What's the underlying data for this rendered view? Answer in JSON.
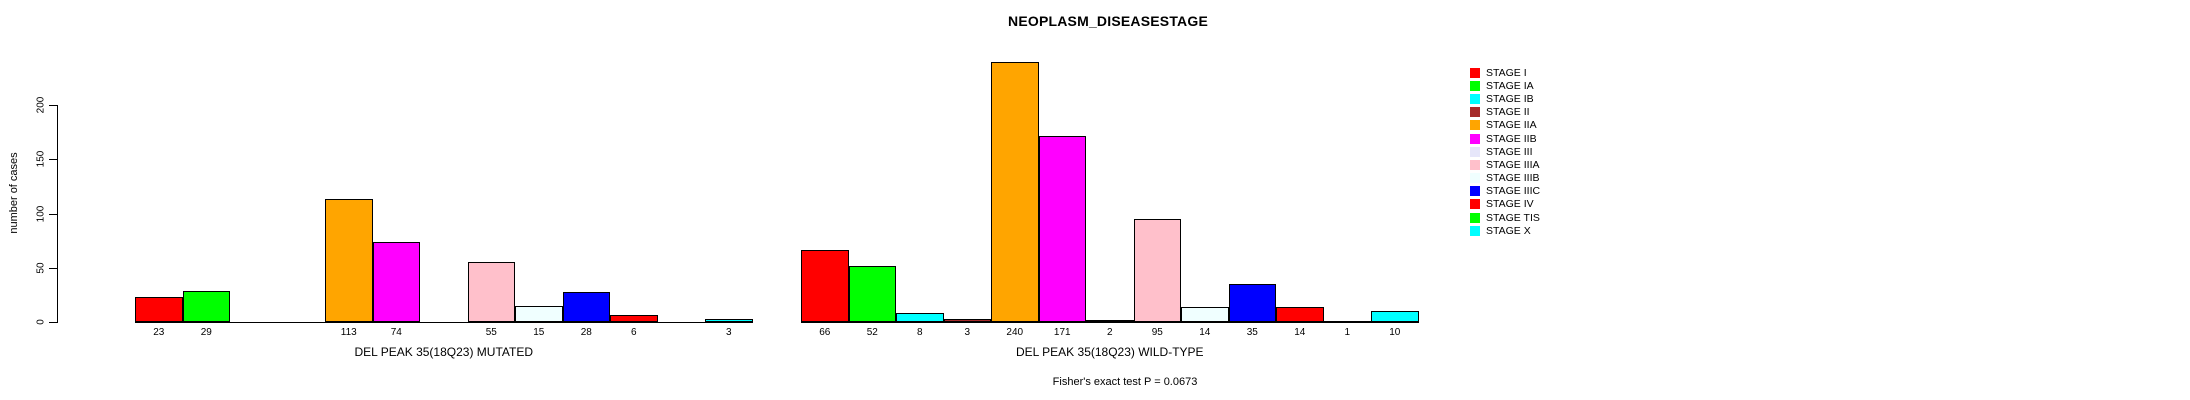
{
  "chart_data": {
    "type": "bar",
    "title": "NEOPLASM_DISEASESTAGE",
    "ylabel": "number of cases",
    "ylim": [
      0,
      200
    ],
    "yticks": [
      0,
      50,
      100,
      150,
      200
    ],
    "grid": false,
    "legend_position": "right-top",
    "bar_value_labels_shown": true,
    "categories": [
      "STAGE I",
      "STAGE IA",
      "STAGE IB",
      "STAGE II",
      "STAGE IIA",
      "STAGE IIB",
      "STAGE III",
      "STAGE IIIA",
      "STAGE IIIB",
      "STAGE IIIC",
      "STAGE IV",
      "STAGE TIS",
      "STAGE X"
    ],
    "colors": [
      "#FF0000",
      "#00FF00",
      "#00FFFF",
      "#A52A2A",
      "#FFA500",
      "#FF00FF",
      "#E6E6FA",
      "#FFC0CB",
      "#F0FFFF",
      "#0000FF",
      "#FF0000",
      "#00FF00",
      "#00FFFF"
    ],
    "series": [
      {
        "name": "DEL PEAK 35(18Q23) MUTATED",
        "values": [
          23,
          29,
          0,
          0,
          113,
          74,
          0,
          55,
          15,
          28,
          6,
          0,
          3
        ]
      },
      {
        "name": "DEL PEAK 35(18Q23) WILD-TYPE",
        "values": [
          66,
          52,
          8,
          3,
          240,
          171,
          2,
          95,
          14,
          35,
          14,
          1,
          10
        ]
      }
    ],
    "footer": "Fisher's exact test P = 0.0673"
  },
  "colors": {
    "background": "#FFFFFF",
    "axis": "#000000",
    "text": "#000000"
  }
}
